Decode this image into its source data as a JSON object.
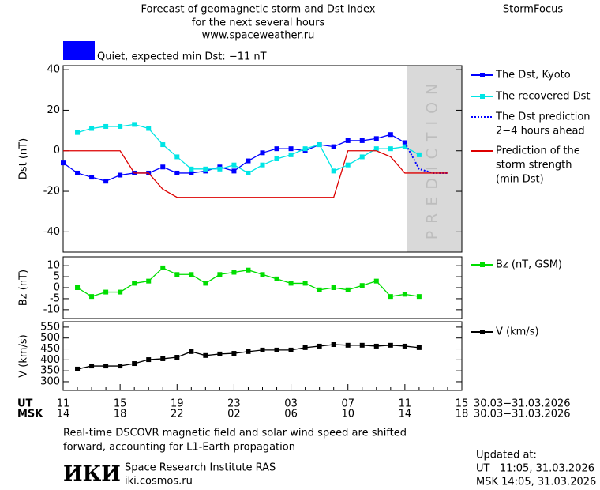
{
  "header": {
    "title_lines": [
      "Forecast of geomagnetic storm and Dst index",
      "for the next several hours",
      "www.spaceweather.ru"
    ],
    "brand": "StormFocus",
    "status": "Quiet, expected min Dst: −11 nT",
    "status_color": "#0000ff"
  },
  "time_axis": {
    "rows": [
      {
        "name": "UT",
        "labels": [
          "11",
          null,
          null,
          null,
          "15",
          null,
          null,
          null,
          "19",
          null,
          null,
          null,
          "23",
          null,
          null,
          null,
          "03",
          null,
          null,
          null,
          "07",
          null,
          null,
          null,
          "11",
          null,
          null,
          null,
          "15"
        ],
        "dates": "30.03−31.03.2026"
      },
      {
        "name": "MSK",
        "labels": [
          "14",
          null,
          null,
          null,
          "18",
          null,
          null,
          null,
          "22",
          null,
          null,
          null,
          "02",
          null,
          null,
          null,
          "06",
          null,
          null,
          null,
          "10",
          null,
          null,
          null,
          "14",
          null,
          null,
          null,
          "18"
        ],
        "dates": "30.03−31.03.2026"
      }
    ]
  },
  "prediction_label": "PREDICTION",
  "chart_data": [
    {
      "type": "line",
      "y_label": "Dst (nT)",
      "ylim": [
        -50,
        42
      ],
      "yticks": [
        40,
        20,
        0,
        -20,
        -40
      ],
      "series": [
        {
          "name": [
            "The Dst, Kyoto"
          ],
          "color": "#0000ff",
          "marker": true,
          "style": "solid",
          "values": [
            -6,
            -11,
            -13,
            -15,
            -12,
            -11,
            -11,
            -8,
            -11,
            -11,
            -10,
            -8,
            -10,
            -5,
            -1,
            1,
            1,
            0,
            3,
            2,
            5,
            5,
            6,
            8,
            4
          ]
        },
        {
          "name": [
            "The recovered Dst"
          ],
          "color": "#00e5e5",
          "marker": true,
          "style": "solid",
          "values": [
            null,
            9,
            11,
            12,
            12,
            13,
            11,
            3,
            -3,
            -9,
            -9,
            -9,
            -7,
            -11,
            -7,
            -4,
            -2,
            1,
            3,
            -10,
            -7,
            -3,
            1,
            1,
            2,
            -2
          ]
        },
        {
          "name": [
            "The Dst prediction",
            "2−4 hours ahead"
          ],
          "color": "#0000ff",
          "marker": false,
          "style": "dotted",
          "values": [
            null,
            null,
            null,
            null,
            null,
            null,
            null,
            null,
            null,
            null,
            null,
            null,
            null,
            null,
            null,
            null,
            null,
            null,
            null,
            null,
            null,
            null,
            null,
            null,
            4,
            -9,
            -11,
            -11
          ]
        },
        {
          "name": [
            "Prediction of the",
            "storm strength",
            "(min Dst)"
          ],
          "color": "#dd0000",
          "marker": false,
          "style": "solid",
          "values": [
            0,
            0,
            0,
            0,
            0,
            -11,
            -11,
            -19,
            -23,
            -23,
            -23,
            -23,
            -23,
            -23,
            -23,
            -23,
            -23,
            -23,
            -23,
            -23,
            0,
            0,
            0,
            -3,
            -11,
            -11,
            -11,
            -11
          ]
        }
      ]
    },
    {
      "type": "line",
      "y_label": "Bz (nT)",
      "ylim": [
        -14,
        14
      ],
      "yticks": [
        10,
        5,
        0,
        -5,
        -10
      ],
      "series": [
        {
          "name": [
            "Bz (nT, GSM)"
          ],
          "color": "#00dd00",
          "marker": true,
          "style": "solid",
          "values": [
            null,
            0,
            -4,
            -2,
            -2,
            2,
            3,
            9,
            6,
            6,
            2,
            6,
            7,
            8,
            6,
            4,
            2,
            2,
            -1,
            0,
            -1,
            1,
            3,
            -4,
            -3,
            -4
          ]
        }
      ]
    },
    {
      "type": "line",
      "y_label": "V (km/s)",
      "ylim": [
        260,
        575
      ],
      "yticks": [
        550,
        500,
        450,
        400,
        350,
        300
      ],
      "series": [
        {
          "name": [
            "V (km/s)"
          ],
          "color": "#000000",
          "marker": true,
          "style": "solid",
          "values": [
            null,
            358,
            372,
            372,
            372,
            383,
            401,
            405,
            412,
            438,
            420,
            427,
            430,
            438,
            445,
            445,
            445,
            456,
            463,
            470,
            467,
            467,
            463,
            467,
            463,
            456
          ]
        }
      ]
    }
  ],
  "footer": {
    "note_lines": [
      "Real-time DSCOVR magnetic field and solar wind speed are shifted",
      "forward, accounting for L1-Earth propagation"
    ],
    "logo": "ИКИ",
    "institute": "Space Research Institute RAS",
    "site": "iki.cosmos.ru",
    "updated_title": "Updated at:",
    "updated_lines": [
      "UT   11:05, 31.03.2026",
      "MSK 14:05, 31.03.2026"
    ]
  }
}
